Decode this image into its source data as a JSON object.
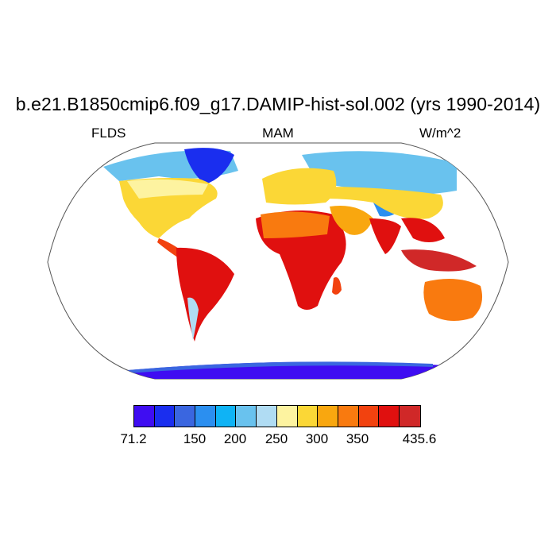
{
  "header": {
    "title": "b.e21.B1850cmip6.f09_g17.DAMIP-hist-sol.002 (yrs 1990-2014)",
    "left": "FLDS",
    "center": "MAM",
    "right": "W/m^2"
  },
  "colorbar": {
    "colors": [
      "#3f0df2",
      "#1a2eef",
      "#3a66e0",
      "#2b8ff0",
      "#0fb3f5",
      "#69c2ee",
      "#b0dcf3",
      "#fdf3a0",
      "#fbd736",
      "#f9a70f",
      "#f97a0f",
      "#f2420f",
      "#e0100f",
      "#d02828"
    ],
    "labels": [
      "71.2",
      "150",
      "200",
      "250",
      "300",
      "350",
      "435.6"
    ]
  }
}
